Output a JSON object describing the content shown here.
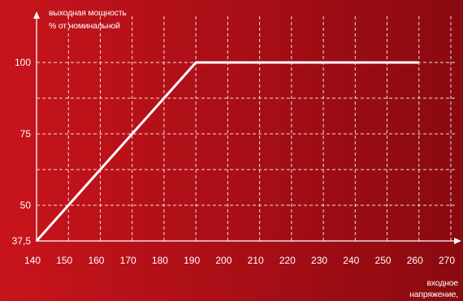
{
  "chart_data": {
    "type": "line",
    "title": "",
    "ylabel": [
      "выходная мощность",
      "% от номинальной"
    ],
    "xlabel": [
      "входное",
      "напряжение,"
    ],
    "xlim": [
      140,
      270
    ],
    "ylim": [
      37.5,
      100
    ],
    "x_ticks": [
      140,
      150,
      160,
      170,
      180,
      190,
      200,
      210,
      220,
      230,
      240,
      250,
      260,
      270
    ],
    "y_ticks": [
      {
        "value": 37.5,
        "label": "37,5"
      },
      {
        "value": 50,
        "label": "50"
      },
      {
        "value": 75,
        "label": "75"
      },
      {
        "value": 100,
        "label": "100"
      }
    ],
    "grid": true,
    "series": [
      {
        "x": [
          140,
          190,
          260
        ],
        "y": [
          37.5,
          100,
          100
        ]
      }
    ]
  },
  "colors": {
    "line": "#ffffff",
    "grid": "#ffffff",
    "background_left": "#c8141c",
    "background_right": "#8a0a10"
  }
}
